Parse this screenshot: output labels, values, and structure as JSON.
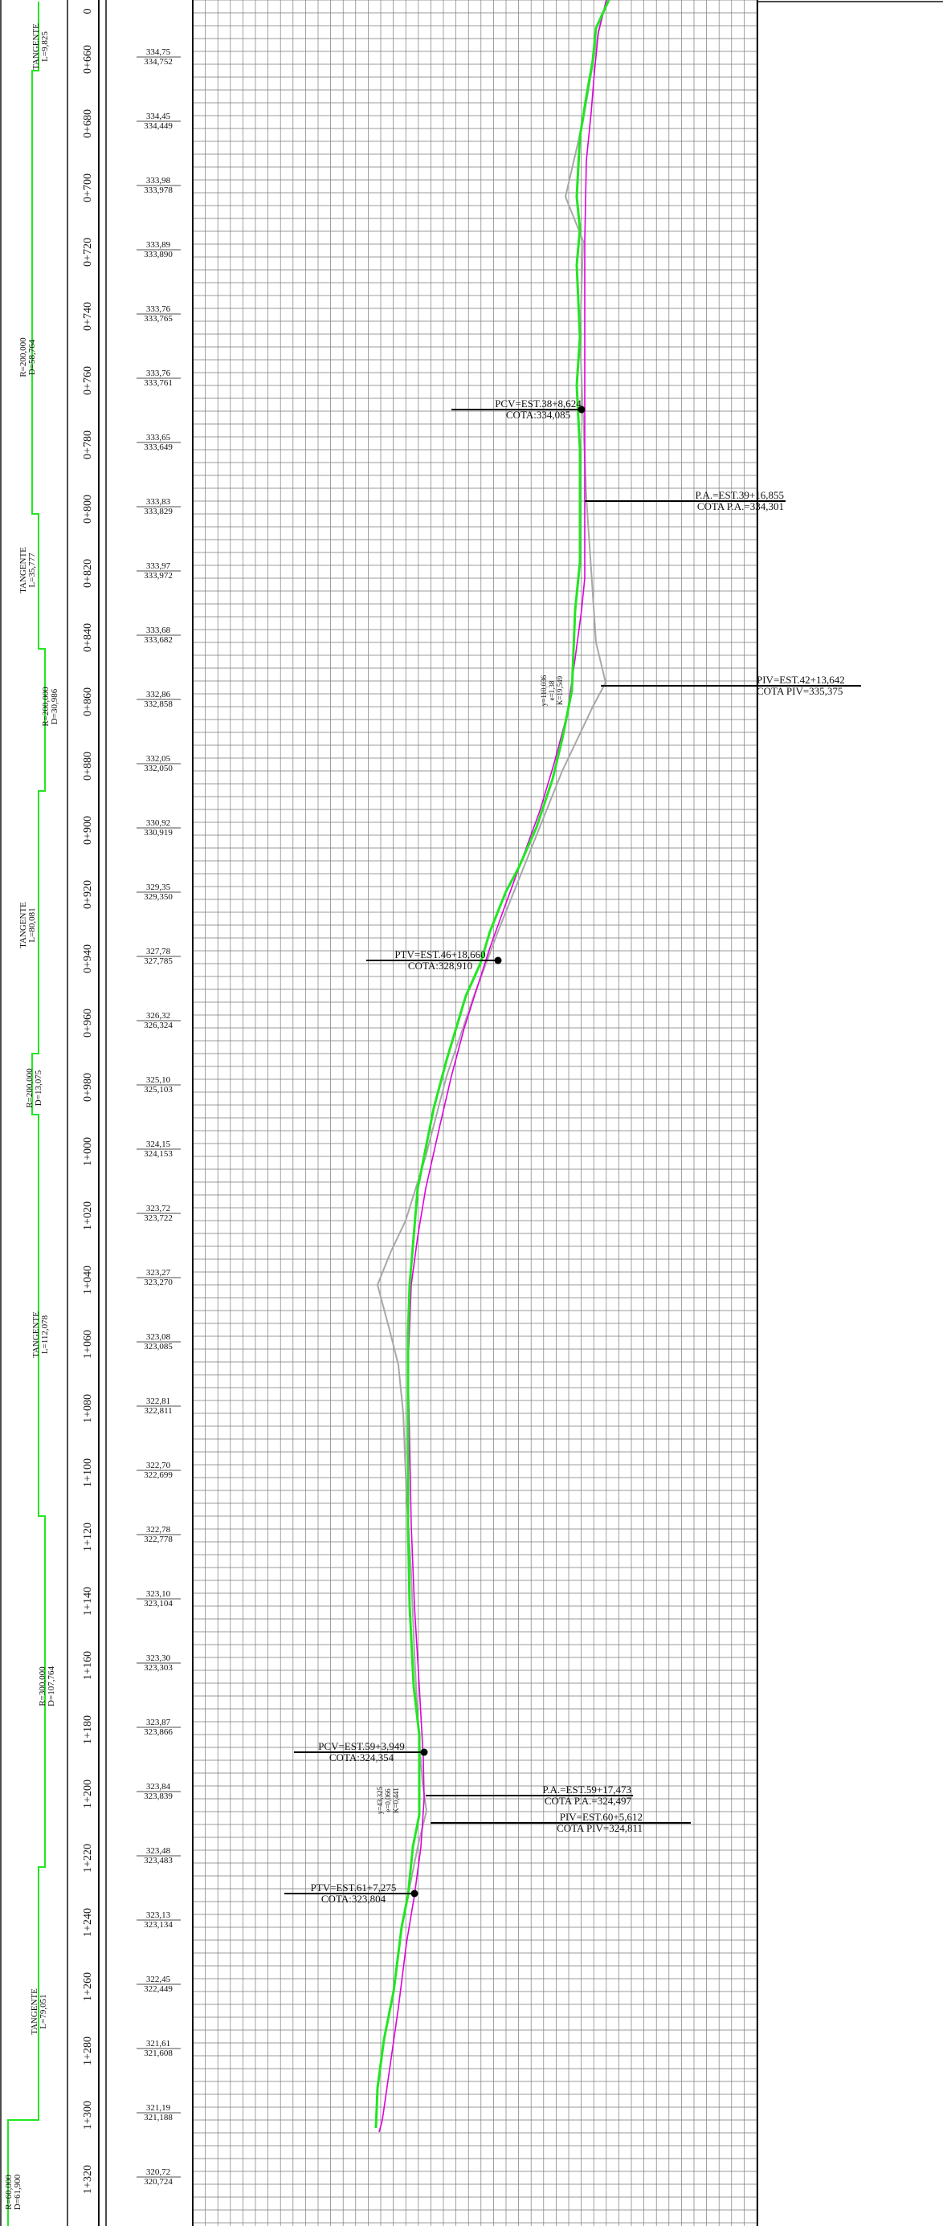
{
  "colors": {
    "terrain": "#22e622",
    "grade": "#e000e0",
    "original": "#a8a8a8",
    "grid": "#7a7a7a",
    "frame": "#111111",
    "plan": "#22e622"
  },
  "rows": [
    {
      "station": "0+660",
      "cota_a": "334,75",
      "cota_b": "334,752"
    },
    {
      "station": "0+680",
      "cota_a": "334,45",
      "cota_b": "334,449"
    },
    {
      "station": "0+700",
      "cota_a": "333,98",
      "cota_b": "333,978"
    },
    {
      "station": "0+720",
      "cota_a": "333,89",
      "cota_b": "333,890"
    },
    {
      "station": "0+740",
      "cota_a": "333,76",
      "cota_b": "333,765"
    },
    {
      "station": "0+760",
      "cota_a": "333,76",
      "cota_b": "333,761"
    },
    {
      "station": "0+780",
      "cota_a": "333,65",
      "cota_b": "333,649"
    },
    {
      "station": "0+800",
      "cota_a": "333,83",
      "cota_b": "333,829"
    },
    {
      "station": "0+820",
      "cota_a": "333,97",
      "cota_b": "333,972"
    },
    {
      "station": "0+840",
      "cota_a": "333,68",
      "cota_b": "333,682"
    },
    {
      "station": "0+860",
      "cota_a": "332,86",
      "cota_b": "332,858"
    },
    {
      "station": "0+880",
      "cota_a": "332,05",
      "cota_b": "332,050"
    },
    {
      "station": "0+900",
      "cota_a": "330,92",
      "cota_b": "330,919"
    },
    {
      "station": "0+920",
      "cota_a": "329,35",
      "cota_b": "329,350"
    },
    {
      "station": "0+940",
      "cota_a": "327,78",
      "cota_b": "327,785"
    },
    {
      "station": "0+960",
      "cota_a": "326,32",
      "cota_b": "326,324"
    },
    {
      "station": "0+980",
      "cota_a": "325,10",
      "cota_b": "325,103"
    },
    {
      "station": "1+000",
      "cota_a": "324,15",
      "cota_b": "324,153"
    },
    {
      "station": "1+020",
      "cota_a": "323,72",
      "cota_b": "323,722"
    },
    {
      "station": "1+040",
      "cota_a": "323,27",
      "cota_b": "323,270"
    },
    {
      "station": "1+060",
      "cota_a": "323,08",
      "cota_b": "323,085"
    },
    {
      "station": "1+080",
      "cota_a": "322,81",
      "cota_b": "322,811"
    },
    {
      "station": "1+100",
      "cota_a": "322,70",
      "cota_b": "322,699"
    },
    {
      "station": "1+120",
      "cota_a": "322,78",
      "cota_b": "322,778"
    },
    {
      "station": "1+140",
      "cota_a": "323,10",
      "cota_b": "323,104"
    },
    {
      "station": "1+160",
      "cota_a": "323,30",
      "cota_b": "323,303"
    },
    {
      "station": "1+180",
      "cota_a": "323,87",
      "cota_b": "323,866"
    },
    {
      "station": "1+200",
      "cota_a": "323,84",
      "cota_b": "323,839"
    },
    {
      "station": "1+220",
      "cota_a": "323,48",
      "cota_b": "323,483"
    },
    {
      "station": "1+240",
      "cota_a": "323,13",
      "cota_b": "323,134"
    },
    {
      "station": "1+260",
      "cota_a": "322,45",
      "cota_b": "322,449"
    },
    {
      "station": "1+280",
      "cota_a": "321,61",
      "cota_b": "321,608"
    },
    {
      "station": "1+300",
      "cota_a": "321,19",
      "cota_b": "321,188"
    },
    {
      "station": "1+320",
      "cota_a": "320,72",
      "cota_b": "320,724"
    }
  ],
  "partial_station": "0",
  "plan_labels": [
    {
      "line1": "TANGENTE",
      "line2": "L=9,825"
    },
    {
      "line1": "R=200,000",
      "line2": "D=58,764"
    },
    {
      "line1": "TANGENTE",
      "line2": "L=35,777"
    },
    {
      "line1": "R=200,000",
      "line2": "D=30,986"
    },
    {
      "line1": "TANGENTE",
      "line2": "L=80,081"
    },
    {
      "line1": "R=200,000",
      "line2": "D=13,075"
    },
    {
      "line1": "TANGENTE",
      "line2": "L=112,078"
    },
    {
      "line1": "R=300,000",
      "line2": "D=107,764"
    },
    {
      "line1": "TANGENTE",
      "line2": "L=79,051"
    },
    {
      "line1": "R=60,000",
      "line2": "D=61,900"
    }
  ],
  "curve_labels": [
    {
      "lines": [
        "PCV=EST.38+8,624",
        "COTA:334,085"
      ]
    },
    {
      "lines": [
        "P.A.=EST.39+16,855",
        "COTA P.A.=334,301"
      ]
    },
    {
      "lines": [
        "PIV=EST.42+13,642",
        "COTA PIV=335,375"
      ]
    },
    {
      "lines": [
        "PTV=EST.46+18,660",
        "COTA:328,910"
      ]
    },
    {
      "lines": [
        "PCV=EST.59+3,949",
        "COTA:324,354"
      ]
    },
    {
      "lines": [
        "P.A.=EST.59+17,473",
        "COTA P.A.=324,497"
      ]
    },
    {
      "lines": [
        "PIV=EST.60+5,612",
        "COTA PIV=324,811"
      ]
    },
    {
      "lines": [
        "PTV=EST.61+7,275",
        "COTA:323,804"
      ]
    }
  ],
  "curve_params": [
    {
      "lines": [
        "K=19,549",
        "e=1,38",
        "y=110,036"
      ]
    },
    {
      "lines": [
        "K=0,441",
        "e=0,066",
        "y=43,325"
      ]
    }
  ]
}
